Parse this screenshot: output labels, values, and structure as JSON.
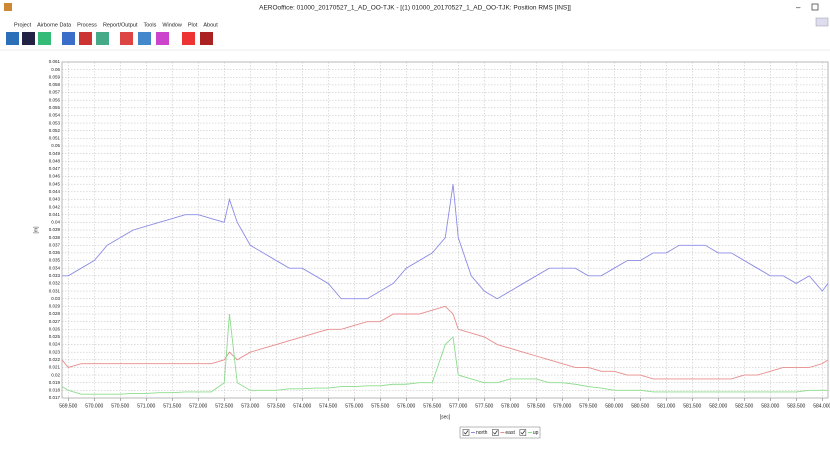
{
  "window": {
    "title": "AEROoffice: 01000_20170527_1_AD_OO-TJK - [(1) 01000_20170527_1_AD_OO-TJK: Position RMS [INS]]",
    "menu": [
      "Project",
      "Airborne Data",
      "Process",
      "Report/Output",
      "Tools",
      "Window",
      "Plot",
      "About"
    ]
  },
  "chart_data": {
    "type": "line",
    "ylabel": "[m]",
    "xlabel": "[sec]",
    "grid": true,
    "xlim": [
      569.38,
      584.11
    ],
    "ylim": [
      0.017,
      0.061
    ],
    "yticks": [
      0.017,
      0.018,
      0.019,
      0.02,
      0.021,
      0.022,
      0.023,
      0.024,
      0.025,
      0.026,
      0.027,
      0.028,
      0.029,
      0.03,
      0.031,
      0.032,
      0.033,
      0.034,
      0.035,
      0.036,
      0.037,
      0.038,
      0.039,
      0.04,
      0.041,
      0.042,
      0.043,
      0.044,
      0.045,
      0.046,
      0.047,
      0.048,
      0.049,
      0.05,
      0.051,
      0.052,
      0.053,
      0.054,
      0.055,
      0.056,
      0.057,
      0.058,
      0.059,
      0.06,
      0.061
    ],
    "xticks": [
      {
        "value": 569.5,
        "label": "569.500"
      },
      {
        "value": 570,
        "label": "570.000"
      },
      {
        "value": 570.5,
        "label": "570.500"
      },
      {
        "value": 571,
        "label": "571.000"
      },
      {
        "value": 571.5,
        "label": "571.500"
      },
      {
        "value": 572,
        "label": "572.000"
      },
      {
        "value": 572.5,
        "label": "572.500"
      },
      {
        "value": 573,
        "label": "573.000"
      },
      {
        "value": 573.5,
        "label": "573.500"
      },
      {
        "value": 574,
        "label": "574.000"
      },
      {
        "value": 574.5,
        "label": "574.500"
      },
      {
        "value": 575,
        "label": "575.000"
      },
      {
        "value": 575.5,
        "label": "575.500"
      },
      {
        "value": 576,
        "label": "576.000"
      },
      {
        "value": 576.5,
        "label": "576.500"
      },
      {
        "value": 577,
        "label": "577.000"
      },
      {
        "value": 577.5,
        "label": "577.500"
      },
      {
        "value": 578,
        "label": "578.000"
      },
      {
        "value": 578.5,
        "label": "578.500"
      },
      {
        "value": 579,
        "label": "579.000"
      },
      {
        "value": 579.5,
        "label": "579.500"
      },
      {
        "value": 580,
        "label": "580.000"
      },
      {
        "value": 580.5,
        "label": "580.500"
      },
      {
        "value": 581,
        "label": "581.000"
      },
      {
        "value": 581.5,
        "label": "581.500"
      },
      {
        "value": 582,
        "label": "582.000"
      },
      {
        "value": 582.5,
        "label": "582.500"
      },
      {
        "value": 583,
        "label": "583.000"
      },
      {
        "value": 583.5,
        "label": "583.500"
      },
      {
        "value": 584,
        "label": "584.000"
      }
    ],
    "x": [
      569.38,
      569.5,
      569.75,
      570,
      570.25,
      570.5,
      570.75,
      571,
      571.25,
      571.5,
      571.75,
      572,
      572.25,
      572.5,
      572.6,
      572.75,
      573,
      573.25,
      573.5,
      573.75,
      574,
      574.25,
      574.5,
      574.75,
      575,
      575.25,
      575.5,
      575.75,
      576,
      576.25,
      576.5,
      576.75,
      576.9,
      577,
      577.25,
      577.5,
      577.75,
      578,
      578.25,
      578.5,
      578.75,
      579,
      579.25,
      579.5,
      579.75,
      580,
      580.25,
      580.5,
      580.75,
      581,
      581.25,
      581.5,
      581.75,
      582,
      582.25,
      582.5,
      582.75,
      583,
      583.25,
      583.5,
      583.75,
      584,
      584.11
    ],
    "series": [
      {
        "name": "north",
        "color": "#8c8ce6",
        "values": [
          0.033,
          0.033,
          0.034,
          0.035,
          0.037,
          0.038,
          0.039,
          0.0395,
          0.04,
          0.0405,
          0.041,
          0.041,
          0.0405,
          0.04,
          0.043,
          0.04,
          0.037,
          0.036,
          0.035,
          0.034,
          0.034,
          0.033,
          0.032,
          0.03,
          0.03,
          0.03,
          0.031,
          0.032,
          0.034,
          0.035,
          0.036,
          0.038,
          0.045,
          0.038,
          0.033,
          0.031,
          0.03,
          0.031,
          0.032,
          0.033,
          0.034,
          0.034,
          0.034,
          0.033,
          0.033,
          0.034,
          0.035,
          0.035,
          0.036,
          0.036,
          0.037,
          0.037,
          0.037,
          0.036,
          0.036,
          0.035,
          0.034,
          0.033,
          0.033,
          0.032,
          0.033,
          0.031,
          0.032
        ]
      },
      {
        "name": "east",
        "color": "#e88c8c",
        "values": [
          0.022,
          0.021,
          0.0215,
          0.0215,
          0.0215,
          0.0215,
          0.0215,
          0.0215,
          0.0215,
          0.0215,
          0.0215,
          0.0215,
          0.0215,
          0.022,
          0.023,
          0.022,
          0.023,
          0.0235,
          0.024,
          0.0245,
          0.025,
          0.0255,
          0.026,
          0.026,
          0.0265,
          0.027,
          0.027,
          0.028,
          0.028,
          0.028,
          0.0285,
          0.029,
          0.028,
          0.026,
          0.0255,
          0.025,
          0.024,
          0.0235,
          0.023,
          0.0225,
          0.022,
          0.0215,
          0.021,
          0.021,
          0.0205,
          0.0205,
          0.02,
          0.02,
          0.0195,
          0.0195,
          0.0195,
          0.0195,
          0.0195,
          0.0195,
          0.0195,
          0.02,
          0.02,
          0.0205,
          0.021,
          0.021,
          0.021,
          0.0215,
          0.022
        ]
      },
      {
        "name": "up",
        "color": "#8cdc8c",
        "values": [
          0.0185,
          0.018,
          0.0175,
          0.0175,
          0.0175,
          0.0175,
          0.0176,
          0.0176,
          0.0177,
          0.0177,
          0.0178,
          0.0178,
          0.0178,
          0.019,
          0.028,
          0.019,
          0.018,
          0.018,
          0.018,
          0.0182,
          0.0182,
          0.0183,
          0.0183,
          0.0185,
          0.0185,
          0.0186,
          0.0186,
          0.0188,
          0.0188,
          0.019,
          0.019,
          0.024,
          0.025,
          0.02,
          0.0195,
          0.019,
          0.019,
          0.0195,
          0.0195,
          0.0195,
          0.019,
          0.019,
          0.0188,
          0.0185,
          0.0183,
          0.018,
          0.018,
          0.018,
          0.0178,
          0.0178,
          0.0178,
          0.0178,
          0.0178,
          0.0178,
          0.0178,
          0.0178,
          0.0178,
          0.0178,
          0.0178,
          0.0178,
          0.018,
          0.018,
          0.018
        ]
      }
    ]
  }
}
